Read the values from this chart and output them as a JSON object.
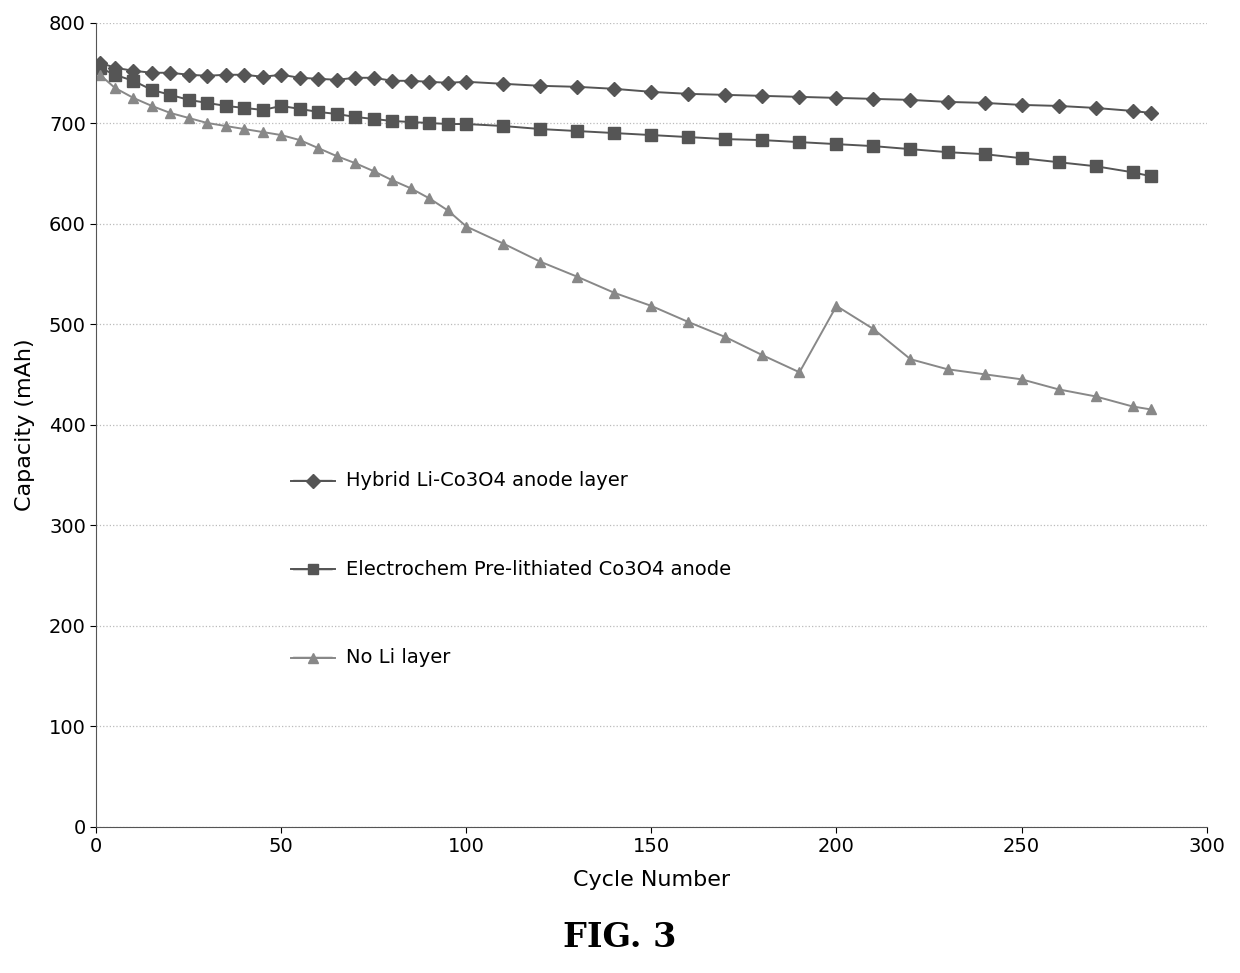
{
  "title": "FIG. 3",
  "xlabel": "Cycle Number",
  "ylabel": "Capacity (mAh)",
  "xlim": [
    0,
    300
  ],
  "ylim": [
    0,
    800
  ],
  "xticks": [
    0,
    50,
    100,
    150,
    200,
    250,
    300
  ],
  "yticks": [
    0,
    100,
    200,
    300,
    400,
    500,
    600,
    700,
    800
  ],
  "series": [
    {
      "label": "Hybrid Li-Co3O4 anode layer",
      "color": "#555555",
      "marker": "D",
      "markersize": 7,
      "linewidth": 1.4,
      "x": [
        1,
        5,
        10,
        15,
        20,
        25,
        30,
        35,
        40,
        45,
        50,
        55,
        60,
        65,
        70,
        75,
        80,
        85,
        90,
        95,
        100,
        110,
        120,
        130,
        140,
        150,
        160,
        170,
        180,
        190,
        200,
        210,
        220,
        230,
        240,
        250,
        260,
        270,
        280,
        285
      ],
      "y": [
        760,
        755,
        752,
        750,
        750,
        748,
        747,
        748,
        748,
        746,
        748,
        745,
        744,
        743,
        745,
        745,
        742,
        742,
        741,
        740,
        741,
        739,
        737,
        736,
        734,
        731,
        729,
        728,
        727,
        726,
        725,
        724,
        723,
        721,
        720,
        718,
        717,
        715,
        712,
        710
      ]
    },
    {
      "label": "Electrochem Pre-lithiated Co3O4 anode",
      "color": "#555555",
      "marker": "s",
      "markersize": 8,
      "linewidth": 1.4,
      "x": [
        1,
        5,
        10,
        15,
        20,
        25,
        30,
        35,
        40,
        45,
        50,
        55,
        60,
        65,
        70,
        75,
        80,
        85,
        90,
        95,
        100,
        110,
        120,
        130,
        140,
        150,
        160,
        170,
        180,
        190,
        200,
        210,
        220,
        230,
        240,
        250,
        260,
        270,
        280,
        285
      ],
      "y": [
        755,
        748,
        742,
        733,
        728,
        723,
        720,
        717,
        715,
        713,
        717,
        714,
        711,
        709,
        706,
        704,
        702,
        701,
        700,
        699,
        699,
        697,
        694,
        692,
        690,
        688,
        686,
        684,
        683,
        681,
        679,
        677,
        674,
        671,
        669,
        665,
        661,
        657,
        651,
        647
      ]
    },
    {
      "label": "No Li layer",
      "color": "#888888",
      "marker": "^",
      "markersize": 7,
      "linewidth": 1.4,
      "x": [
        1,
        5,
        10,
        15,
        20,
        25,
        30,
        35,
        40,
        45,
        50,
        55,
        60,
        65,
        70,
        75,
        80,
        85,
        90,
        95,
        100,
        110,
        120,
        130,
        140,
        150,
        160,
        170,
        180,
        190,
        200,
        210,
        220,
        230,
        240,
        250,
        260,
        270,
        280,
        285
      ],
      "y": [
        748,
        735,
        725,
        717,
        710,
        705,
        700,
        697,
        694,
        691,
        688,
        683,
        675,
        667,
        660,
        652,
        643,
        635,
        625,
        613,
        597,
        580,
        562,
        547,
        531,
        518,
        502,
        487,
        469,
        452,
        518,
        495,
        465,
        455,
        450,
        445,
        435,
        428,
        418,
        415
      ]
    }
  ],
  "background_color": "#ffffff",
  "grid_color": "#bbbbbb",
  "fig_title": "FIG. 3",
  "fig_title_fontsize": 24,
  "axis_label_fontsize": 16,
  "tick_fontsize": 14,
  "legend_fontsize": 14,
  "legend_entries": [
    {
      "label": "Hybrid Li-Co3O4 anode layer",
      "marker": "D",
      "color": "#555555"
    },
    {
      "label": "Electrochem Pre-lithiated Co3O4 anode",
      "marker": "s",
      "color": "#555555"
    },
    {
      "label": "No Li layer",
      "marker": "^",
      "color": "#888888"
    }
  ]
}
